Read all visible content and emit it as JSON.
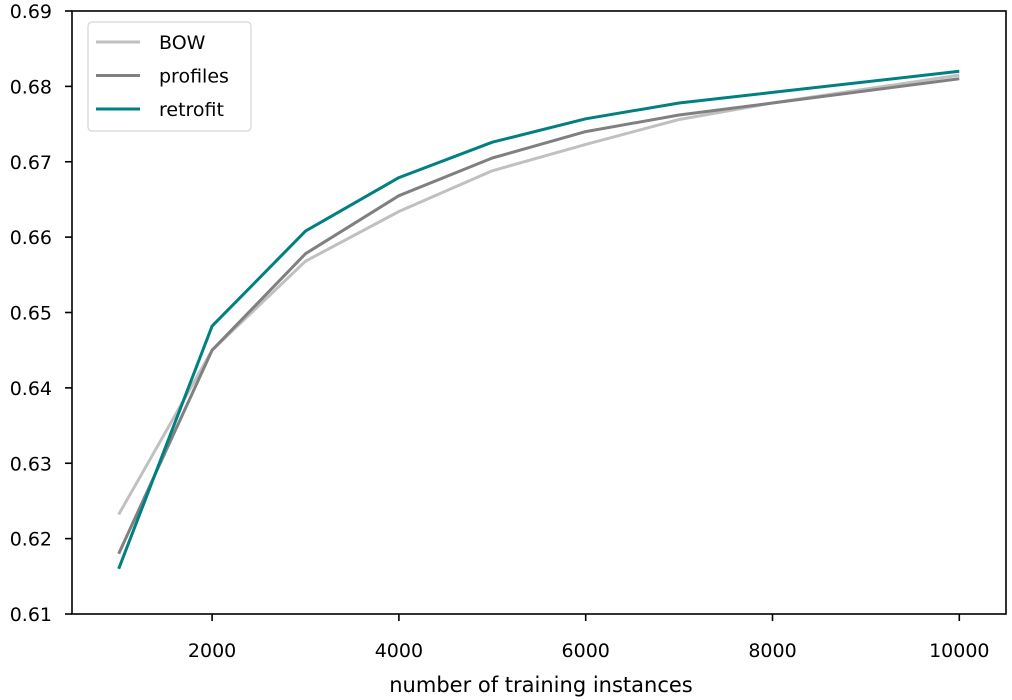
{
  "chart_data": {
    "type": "line",
    "title": "",
    "xlabel": "number of training instances",
    "ylabel": "",
    "xlim": [
      500,
      10500
    ],
    "ylim": [
      0.61,
      0.69
    ],
    "x_ticks": [
      2000,
      4000,
      6000,
      8000,
      10000
    ],
    "x_tick_labels": [
      "2000",
      "4000",
      "6000",
      "8000",
      "10000"
    ],
    "y_ticks": [
      0.61,
      0.62,
      0.63,
      0.64,
      0.65,
      0.66,
      0.67,
      0.68,
      0.69
    ],
    "y_tick_labels": [
      "0.61",
      "0.62",
      "0.63",
      "0.64",
      "0.65",
      "0.66",
      "0.67",
      "0.68",
      "0.69"
    ],
    "grid": false,
    "legend_position": "top-left",
    "x": [
      1000,
      2000,
      3000,
      4000,
      5000,
      6000,
      7000,
      8000,
      10000
    ],
    "series": [
      {
        "name": "BOW",
        "color": "#c0c0c0",
        "values": [
          0.6232,
          0.645,
          0.6568,
          0.6634,
          0.6688,
          0.6723,
          0.6756,
          0.6778,
          0.6815
        ]
      },
      {
        "name": "profiles",
        "color": "#808080",
        "values": [
          0.618,
          0.645,
          0.6578,
          0.6655,
          0.6705,
          0.674,
          0.6762,
          0.6778,
          0.681
        ]
      },
      {
        "name": "retrofit",
        "color": "#008080",
        "values": [
          0.616,
          0.6482,
          0.6608,
          0.6679,
          0.6726,
          0.6757,
          0.6778,
          0.6792,
          0.682
        ]
      }
    ]
  }
}
